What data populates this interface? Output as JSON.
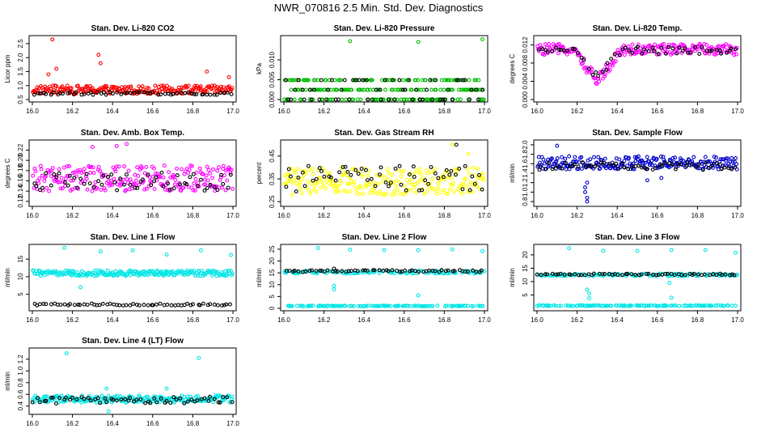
{
  "figure": {
    "title": "NWR_070816  2.5 Min. Std. Dev. Diagnostics"
  },
  "chart_data": [
    {
      "type": "scatter",
      "title": "Stan. Dev. Li-820 CO2",
      "ylabel": "Licor ppm",
      "xlim": [
        16.0,
        17.0
      ],
      "ylim": [
        0.5,
        2.7
      ],
      "xticks": [
        "16.0",
        "16.2",
        "16.4",
        "16.6",
        "16.8",
        "17.0"
      ],
      "yticks": [
        "0.5",
        "1.0",
        "1.5",
        "2.0",
        "2.5"
      ],
      "ytick_values": [
        0.5,
        1.0,
        1.5,
        2.0,
        2.5
      ],
      "series": [
        {
          "name": "primary",
          "color": "#ff0000",
          "baseline": 0.85,
          "spread": 0.15,
          "spikes": [
            [
              16.1,
              2.65
            ],
            [
              16.08,
              1.4
            ],
            [
              16.12,
              1.6
            ],
            [
              16.33,
              2.1
            ],
            [
              16.34,
              1.8
            ],
            [
              16.87,
              1.5
            ],
            [
              16.98,
              1.3
            ]
          ]
        },
        {
          "name": "black",
          "color": "#000000",
          "baseline": 0.72,
          "spread": 0.05,
          "spikes": []
        }
      ]
    },
    {
      "type": "scatter",
      "title": "Stan. Dev. Li-820 Pressure",
      "ylabel": "kPa",
      "xlim": [
        16.0,
        17.0
      ],
      "ylim": [
        0.0,
        0.0155
      ],
      "xticks": [
        "16.0",
        "16.2",
        "16.4",
        "16.6",
        "16.8",
        "17.0"
      ],
      "yticks": [
        "0.000",
        "0.005",
        "0.010"
      ],
      "ytick_values": [
        0.0,
        0.005,
        0.01
      ],
      "series": [
        {
          "name": "primary",
          "color": "#00bb00",
          "levels": [
            0.0,
            0.00245,
            0.0049
          ],
          "spikes": [
            [
              16.33,
              0.0147
            ],
            [
              16.67,
              0.0145
            ],
            [
              16.99,
              0.0152
            ]
          ]
        },
        {
          "name": "black",
          "color": "#000000",
          "levels": [
            0.0,
            0.00245,
            0.0049
          ],
          "spikes": []
        }
      ]
    },
    {
      "type": "scatter",
      "title": "Stan. Dev. Li-820 Temp.",
      "ylabel": "degrees C",
      "xlim": [
        16.0,
        17.0
      ],
      "ylim": [
        0.0,
        0.0135
      ],
      "xticks": [
        "16.0",
        "16.2",
        "16.4",
        "16.6",
        "16.8",
        "17.0"
      ],
      "yticks": [
        "0.000",
        "0.004",
        "0.008",
        "0.012"
      ],
      "ytick_values": [
        0.0,
        0.004,
        0.008,
        0.012
      ],
      "series": [
        {
          "name": "primary",
          "color": "#ff00ff",
          "baseline": 0.011,
          "spread": 0.0012,
          "dip": [
            16.3,
            0.004
          ],
          "spikes": []
        },
        {
          "name": "black",
          "color": "#000000",
          "baseline": 0.0108,
          "spread": 0.0008,
          "dip": [
            16.3,
            0.005
          ],
          "spikes": []
        }
      ]
    },
    {
      "type": "scatter",
      "title": "Stan. Dev. Amb. Box Temp.",
      "ylabel": "degrees C",
      "xlim": [
        16.0,
        17.0
      ],
      "ylim": [
        0.115,
        0.235
      ],
      "xticks": [
        "16.0",
        "16.2",
        "16.4",
        "16.6",
        "16.8",
        "17.0"
      ],
      "yticks": [
        "0.12",
        "0.14",
        "0.16",
        "0.18",
        "0.20",
        "0.22"
      ],
      "ytick_values": [
        0.12,
        0.14,
        0.16,
        0.18,
        0.2,
        0.22
      ],
      "series": [
        {
          "name": "primary",
          "color": "#ff00ff",
          "baseline": 0.165,
          "spread": 0.025,
          "spikes": [
            [
              16.47,
              0.232
            ],
            [
              16.42,
              0.228
            ],
            [
              16.3,
              0.226
            ]
          ]
        },
        {
          "name": "black",
          "color": "#000000",
          "baseline": 0.158,
          "spread": 0.018,
          "spikes": []
        }
      ]
    },
    {
      "type": "scatter",
      "title": "Stan. Dev. Gas Stream RH",
      "ylabel": "percent",
      "xlim": [
        16.0,
        17.0
      ],
      "ylim": [
        0.24,
        0.51
      ],
      "xticks": [
        "16.0",
        "16.2",
        "16.4",
        "16.6",
        "16.8",
        "17.0"
      ],
      "yticks": [
        "0.25",
        "0.35",
        "0.45"
      ],
      "ytick_values": [
        0.25,
        0.35,
        0.45
      ],
      "series": [
        {
          "name": "primary",
          "color": "#ffff00",
          "baseline": 0.34,
          "spread": 0.06,
          "spikes": [
            [
              16.84,
              0.5
            ],
            [
              16.92,
              0.46
            ]
          ]
        },
        {
          "name": "black",
          "color": "#000000",
          "baseline": 0.35,
          "spread": 0.06,
          "spikes": [
            [
              16.86,
              0.5
            ]
          ]
        }
      ]
    },
    {
      "type": "scatter",
      "title": "Stan. Dev. Sample Flow",
      "ylabel": "ml/min",
      "xlim": [
        16.0,
        17.0
      ],
      "ylim": [
        0.75,
        2.05
      ],
      "xticks": [
        "16.0",
        "16.2",
        "16.4",
        "16.6",
        "16.8",
        "17.0"
      ],
      "yticks": [
        "0.8",
        "1.0",
        "1.2",
        "1.4",
        "1.6",
        "1.8",
        "2.0"
      ],
      "ytick_values": [
        0.8,
        1.0,
        1.2,
        1.4,
        1.6,
        1.8,
        2.0
      ],
      "series": [
        {
          "name": "primary",
          "color": "#0000cc",
          "baseline": 1.62,
          "spread": 0.14,
          "spikes": [
            [
              16.25,
              0.8
            ],
            [
              16.25,
              0.88
            ],
            [
              16.24,
              1.0
            ],
            [
              16.24,
              1.1
            ],
            [
              16.25,
              1.2
            ],
            [
              16.1,
              1.98
            ],
            [
              16.62,
              1.3
            ],
            [
              16.55,
              1.25
            ]
          ]
        },
        {
          "name": "black",
          "color": "#000000",
          "baseline": 1.55,
          "spread": 0.08,
          "spikes": []
        }
      ]
    },
    {
      "type": "scatter",
      "title": "Stan. Dev. Line 1 Flow",
      "ylabel": "ml/min",
      "xlim": [
        16.0,
        17.0
      ],
      "ylim": [
        1.0,
        18.5
      ],
      "xticks": [
        "16.0",
        "16.2",
        "16.4",
        "16.6",
        "16.8",
        "17.0"
      ],
      "yticks": [
        "5",
        "10",
        "15"
      ],
      "ytick_values": [
        5,
        10,
        15
      ],
      "series": [
        {
          "name": "primary",
          "color": "#00e5e5",
          "baseline": 11.0,
          "spread": 0.8,
          "spikes": [
            [
              16.16,
              18.2
            ],
            [
              16.34,
              17.2
            ],
            [
              16.5,
              17.5
            ],
            [
              16.67,
              16.3
            ],
            [
              16.84,
              17.5
            ],
            [
              16.99,
              16.2
            ],
            [
              16.24,
              7.0
            ]
          ]
        },
        {
          "name": "black",
          "color": "#000000",
          "baseline": 2.1,
          "spread": 0.3,
          "spikes": []
        }
      ]
    },
    {
      "type": "scatter",
      "title": "Stan. Dev. Line 2 Flow",
      "ylabel": "ml/min",
      "xlim": [
        16.0,
        17.0
      ],
      "ylim": [
        0.0,
        26.0
      ],
      "xticks": [
        "16.0",
        "16.2",
        "16.4",
        "16.6",
        "16.8",
        "17.0"
      ],
      "yticks": [
        "0",
        "5",
        "10",
        "15",
        "20",
        "25"
      ],
      "ytick_values": [
        0,
        5,
        10,
        15,
        20,
        25
      ],
      "series": [
        {
          "name": "primary",
          "color": "#00e5e5",
          "baseline": 15.3,
          "spread": 0.6,
          "secondary": 1.0,
          "spikes": [
            [
              16.17,
              25.5
            ],
            [
              16.33,
              24.8
            ],
            [
              16.5,
              24.6
            ],
            [
              16.67,
              24.6
            ],
            [
              16.84,
              24.9
            ],
            [
              16.99,
              24.2
            ],
            [
              16.25,
              8.0
            ],
            [
              16.25,
              9.5
            ],
            [
              16.67,
              5.5
            ]
          ]
        },
        {
          "name": "black",
          "color": "#000000",
          "baseline": 15.8,
          "spread": 0.4,
          "spikes": [
            [
              16.25,
              16.8
            ]
          ]
        }
      ]
    },
    {
      "type": "scatter",
      "title": "Stan. Dev. Line 3 Flow",
      "ylabel": "ml/min",
      "xlim": [
        16.0,
        17.0
      ],
      "ylim": [
        0.0,
        23.0
      ],
      "xticks": [
        "16.0",
        "16.2",
        "16.4",
        "16.6",
        "16.8",
        "17.0"
      ],
      "yticks": [
        "5",
        "10",
        "15",
        "20"
      ],
      "ytick_values": [
        5,
        10,
        15,
        20
      ],
      "series": [
        {
          "name": "primary",
          "color": "#00e5e5",
          "baseline": 12.5,
          "spread": 0.5,
          "secondary": 1.0,
          "spikes": [
            [
              16.16,
              22.5
            ],
            [
              16.33,
              21.5
            ],
            [
              16.5,
              21.5
            ],
            [
              16.67,
              21.8
            ],
            [
              16.84,
              21.8
            ],
            [
              16.99,
              20.8
            ],
            [
              16.25,
              7.0
            ],
            [
              16.26,
              5.5
            ],
            [
              16.26,
              3.8
            ],
            [
              16.67,
              4.0
            ],
            [
              16.66,
              9.5
            ]
          ]
        },
        {
          "name": "black",
          "color": "#000000",
          "baseline": 12.7,
          "spread": 0.3,
          "spikes": []
        }
      ]
    },
    {
      "type": "scatter",
      "title": "Stan. Dev. Line 4 (LT) Flow",
      "ylabel": "ml/min",
      "xlim": [
        16.0,
        17.0
      ],
      "ylim": [
        0.3,
        1.35
      ],
      "xticks": [
        "16.0",
        "16.2",
        "16.4",
        "16.6",
        "16.8",
        "17.0"
      ],
      "yticks": [
        "0.4",
        "0.6",
        "0.8",
        "1.0",
        "1.2"
      ],
      "ytick_values": [
        0.4,
        0.6,
        0.8,
        1.0,
        1.2
      ],
      "series": [
        {
          "name": "primary",
          "color": "#00e5e5",
          "baseline": 0.52,
          "spread": 0.06,
          "spikes": [
            [
              16.17,
              1.3
            ],
            [
              16.83,
              1.22
            ],
            [
              16.67,
              0.7
            ],
            [
              16.38,
              0.31
            ],
            [
              16.37,
              0.7
            ]
          ]
        },
        {
          "name": "black",
          "color": "#000000",
          "baseline": 0.5,
          "spread": 0.06,
          "spikes": []
        }
      ]
    }
  ]
}
